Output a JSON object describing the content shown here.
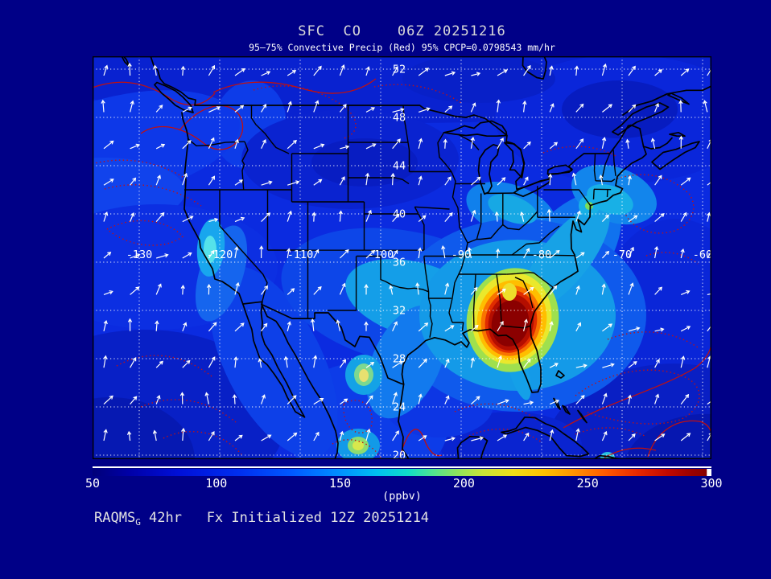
{
  "title": "SFC  CO    06Z 20251216",
  "subtitle": "95–75% Convective Precip (Red) 95% CPCP=0.0798543 mm/hr",
  "footer": {
    "model": "RAQMS",
    "model_subscript": "G",
    "rest": " 42hr   Fx Initialized 12Z 20251214"
  },
  "colorbar": {
    "unit": "(ppbv)",
    "ticks": [
      "50",
      "100",
      "150",
      "200",
      "250",
      "300"
    ],
    "min": 50,
    "max": 300
  },
  "map_labels": {
    "lat": [
      "52",
      "48",
      "44",
      "40",
      "36",
      "32",
      "28",
      "24",
      "20"
    ],
    "lon": [
      "-130",
      "-120",
      "-110",
      "-100",
      "-90",
      "-80",
      "-70",
      "-60"
    ]
  },
  "colors": {
    "background": "#000087",
    "coastline": "#000000",
    "graticule": "#ffffff",
    "wind_vectors": "#ffffff",
    "precip_contours": "#c01010",
    "field_low": "#000078",
    "field_high": "#8b0000"
  },
  "chart_data": {
    "type": "heatmap",
    "title": "SFC  CO    06Z 20251216",
    "subtitle": "95–75% Convective Precip (Red) 95% CPCP=0.0798543 mm/hr",
    "variable": "surface carbon monoxide mixing ratio",
    "units": "ppbv",
    "projection": "cylindrical lat/lon over CONUS and adjacent oceans",
    "lon_range": [
      -135.7,
      -58.8
    ],
    "lat_range": [
      19.7,
      53.1
    ],
    "lon_ticks": [
      -130,
      -120,
      -110,
      -100,
      -90,
      -80,
      -70,
      -60
    ],
    "lat_ticks": [
      52,
      48,
      44,
      40,
      36,
      32,
      28,
      24,
      20
    ],
    "colorbar": {
      "min": 50,
      "max": 300,
      "ticks": [
        50,
        100,
        150,
        200,
        250,
        300
      ],
      "units": "ppbv"
    },
    "field_features": [
      {
        "feature": "absolute maximum",
        "location": "southern Georgia / eastern Alabama",
        "lon": -83.6,
        "lat": 31.2,
        "peak_ppbv": 300
      },
      {
        "feature": "concentric enhanced rings around maximum",
        "ppbv_range": [
          150,
          280
        ]
      },
      {
        "feature": "enhanced band",
        "location": "eastern Texas / Oklahoma",
        "ppbv_range": [
          120,
          170
        ]
      },
      {
        "feature": "enhanced spot",
        "location": "northern California",
        "lon": -121.0,
        "lat": 37.2,
        "ppbv": 190
      },
      {
        "feature": "enhanced corridor",
        "location": "Appalachians through New York City to New England",
        "ppbv_range": [
          130,
          190
        ]
      },
      {
        "feature": "small maxima",
        "location": "northeastern Mexico",
        "ppbv": 200
      },
      {
        "feature": "background ocean field",
        "ppbv_range": [
          70,
          110
        ]
      }
    ],
    "overlays": [
      {
        "name": "surface wind vectors",
        "style": "white arrows on regular grid"
      },
      {
        "name": "convective precipitation 95%/75%",
        "style": "red solid and dotted contours"
      }
    ]
  }
}
